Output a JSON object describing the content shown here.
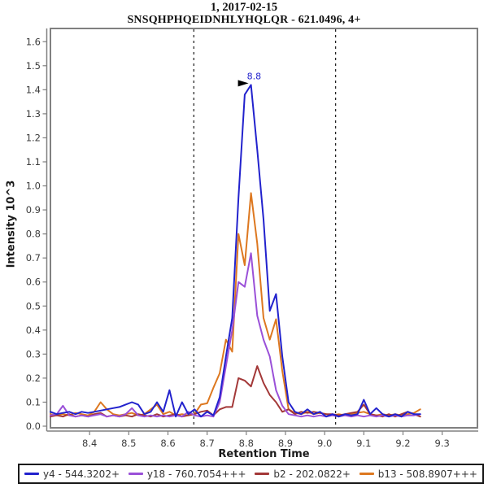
{
  "titles": {
    "line1": "1, 2017-02-15",
    "line2": "SNSQHPHQEIDNHLYHQLQR - 621.0496, 4+"
  },
  "axes": {
    "x_label": "Retention Time",
    "y_label": "Intensity 10^3"
  },
  "colors": {
    "plot_border": "#808080",
    "tick_text": "#3c3c3c",
    "boundary_line": "#1a1a1a",
    "annotation_text": "#2222cd"
  },
  "chart_data": {
    "type": "line",
    "title": "1, 2017-02-15",
    "subtitle": "SNSQHPHQEIDNHLYHQLQR - 621.0496, 4+",
    "xlabel": "Retention Time",
    "ylabel": "Intensity 10^3",
    "xlim": [
      8.3,
      9.39
    ],
    "ylim": [
      0,
      1.655
    ],
    "x_ticks": [
      8.4,
      8.5,
      8.6,
      8.7,
      8.8,
      8.9,
      9.0,
      9.1,
      9.2,
      9.3
    ],
    "y_ticks": [
      0.0,
      0.1,
      0.2,
      0.3,
      0.4,
      0.5,
      0.6,
      0.7,
      0.8,
      0.9,
      1.0,
      1.1,
      1.2,
      1.3,
      1.4,
      1.5,
      1.6
    ],
    "grid": false,
    "legend_position": "bottom",
    "boundary_lines_x": [
      8.666,
      9.028
    ],
    "peak_annotation": {
      "text": "8.8",
      "x": 8.812,
      "y": 1.42
    },
    "x": [
      8.3,
      8.316,
      8.332,
      8.348,
      8.364,
      8.38,
      8.396,
      8.412,
      8.428,
      8.444,
      8.46,
      8.476,
      8.492,
      8.508,
      8.524,
      8.54,
      8.556,
      8.572,
      8.588,
      8.604,
      8.62,
      8.636,
      8.652,
      8.668,
      8.684,
      8.7,
      8.716,
      8.732,
      8.748,
      8.764,
      8.78,
      8.796,
      8.812,
      8.828,
      8.844,
      8.86,
      8.876,
      8.892,
      8.908,
      8.924,
      8.94,
      8.956,
      8.972,
      8.988,
      9.004,
      9.02,
      9.036,
      9.052,
      9.068,
      9.084,
      9.1,
      9.116,
      9.132,
      9.148,
      9.164,
      9.18,
      9.196,
      9.212,
      9.228,
      9.244
    ],
    "series": [
      {
        "name": "y4 - 544.3202+",
        "color": "#2222cd",
        "values": [
          0.06,
          0.05,
          0.055,
          0.06,
          0.05,
          0.06,
          0.055,
          0.06,
          0.065,
          0.07,
          0.075,
          0.08,
          0.09,
          0.1,
          0.09,
          0.05,
          0.06,
          0.1,
          0.06,
          0.15,
          0.04,
          0.1,
          0.05,
          0.07,
          0.04,
          0.06,
          0.045,
          0.12,
          0.29,
          0.45,
          0.95,
          1.38,
          1.42,
          1.15,
          0.86,
          0.48,
          0.55,
          0.29,
          0.1,
          0.06,
          0.05,
          0.07,
          0.05,
          0.06,
          0.04,
          0.05,
          0.04,
          0.05,
          0.045,
          0.05,
          0.11,
          0.05,
          0.075,
          0.05,
          0.04,
          0.05,
          0.04,
          0.06,
          0.05,
          0.05
        ]
      },
      {
        "name": "y18 - 760.7054+++",
        "color": "#9a50d8",
        "values": [
          0.045,
          0.05,
          0.085,
          0.045,
          0.04,
          0.045,
          0.04,
          0.045,
          0.05,
          0.04,
          0.045,
          0.04,
          0.05,
          0.075,
          0.045,
          0.04,
          0.045,
          0.04,
          0.045,
          0.04,
          0.045,
          0.04,
          0.06,
          0.045,
          0.04,
          0.045,
          0.04,
          0.1,
          0.25,
          0.4,
          0.6,
          0.58,
          0.72,
          0.46,
          0.36,
          0.29,
          0.15,
          0.085,
          0.05,
          0.045,
          0.04,
          0.045,
          0.04,
          0.045,
          0.04,
          0.045,
          0.04,
          0.045,
          0.04,
          0.045,
          0.04,
          0.045,
          0.04,
          0.045,
          0.04,
          0.045,
          0.04,
          0.045,
          0.045,
          0.05
        ]
      },
      {
        "name": "b2 - 202.0822+",
        "color": "#a33838",
        "values": [
          0.04,
          0.045,
          0.04,
          0.05,
          0.04,
          0.045,
          0.04,
          0.05,
          0.055,
          0.04,
          0.045,
          0.04,
          0.045,
          0.04,
          0.05,
          0.045,
          0.04,
          0.05,
          0.04,
          0.045,
          0.05,
          0.04,
          0.045,
          0.05,
          0.06,
          0.065,
          0.045,
          0.07,
          0.08,
          0.08,
          0.2,
          0.19,
          0.165,
          0.25,
          0.18,
          0.13,
          0.1,
          0.06,
          0.07,
          0.05,
          0.06,
          0.055,
          0.06,
          0.055,
          0.05,
          0.05,
          0.045,
          0.05,
          0.055,
          0.06,
          0.09,
          0.05,
          0.045,
          0.04,
          0.05,
          0.04,
          0.05,
          0.06,
          0.05,
          0.04
        ]
      },
      {
        "name": "b13 - 508.8907+++",
        "color": "#dd7820",
        "values": [
          0.05,
          0.045,
          0.05,
          0.045,
          0.055,
          0.05,
          0.045,
          0.06,
          0.1,
          0.07,
          0.05,
          0.045,
          0.05,
          0.055,
          0.045,
          0.05,
          0.07,
          0.09,
          0.05,
          0.06,
          0.045,
          0.05,
          0.045,
          0.05,
          0.09,
          0.095,
          0.16,
          0.22,
          0.36,
          0.31,
          0.8,
          0.67,
          0.97,
          0.76,
          0.45,
          0.36,
          0.445,
          0.23,
          0.07,
          0.055,
          0.05,
          0.06,
          0.05,
          0.055,
          0.05,
          0.045,
          0.05,
          0.045,
          0.05,
          0.055,
          0.06,
          0.05,
          0.045,
          0.05,
          0.045,
          0.05,
          0.045,
          0.05,
          0.055,
          0.07
        ]
      }
    ]
  }
}
